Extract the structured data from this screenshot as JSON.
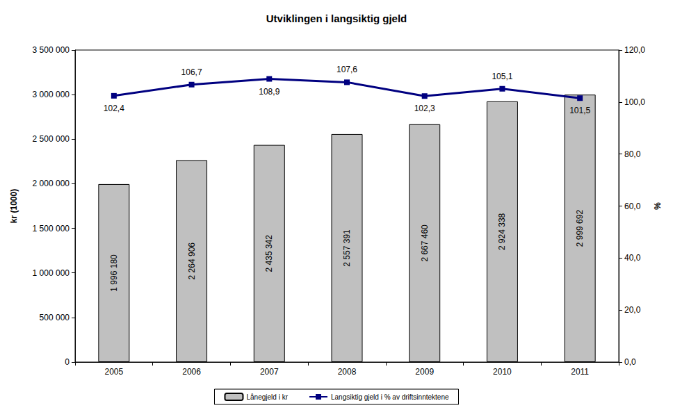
{
  "chart_data": {
    "type": "bar",
    "title": "Utviklingen i langsiktig gjeld",
    "ylabel": "kr (1000)",
    "y2label": "%",
    "categories": [
      "2005",
      "2006",
      "2007",
      "2008",
      "2009",
      "2010",
      "2011"
    ],
    "series": [
      {
        "name": "Lånegjeld i kr",
        "type": "bar",
        "color": "#c0c0c0",
        "values": [
          1996180,
          2264906,
          2435342,
          2557391,
          2667460,
          2924338,
          2999692
        ],
        "value_labels": [
          "1 996 180",
          "2 264 906",
          "2 435 342",
          "2 557 391",
          "2 667 460",
          "2 924 338",
          "2 999 692"
        ]
      },
      {
        "name": "Langsiktig gjeld i % av driftsinntektene",
        "type": "line",
        "axis": "y2",
        "color": "#000080",
        "marker": "square",
        "values": [
          102.4,
          106.7,
          108.9,
          107.6,
          102.3,
          105.1,
          101.5
        ],
        "value_labels": [
          "102,4",
          "106,7",
          "108,9",
          "107,6",
          "102,3",
          "105,1",
          "101,5"
        ]
      }
    ],
    "ylim": [
      0,
      3500000
    ],
    "yticks": [
      0,
      {
        "value": 500000,
        "label": "500 000"
      },
      {
        "value": 1000000,
        "label": "1 000 000"
      },
      {
        "value": 1500000,
        "label": "1 500 000"
      },
      {
        "value": 2000000,
        "label": "2 000 000"
      },
      {
        "value": 2500000,
        "label": "2 500 000"
      },
      {
        "value": 3000000,
        "label": "3 000 000"
      },
      {
        "value": 3500000,
        "label": "3 500 000"
      }
    ],
    "y2lim": [
      0,
      120
    ],
    "y2ticks": [
      {
        "value": 0,
        "label": "0,0"
      },
      {
        "value": 20,
        "label": "20,0"
      },
      {
        "value": 40,
        "label": "40,0"
      },
      {
        "value": 60,
        "label": "60,0"
      },
      {
        "value": 80,
        "label": "80,0"
      },
      {
        "value": 100,
        "label": "100,0"
      },
      {
        "value": 120,
        "label": "120,0"
      }
    ],
    "data_labels": true,
    "legend": "bottom",
    "grid": false
  }
}
